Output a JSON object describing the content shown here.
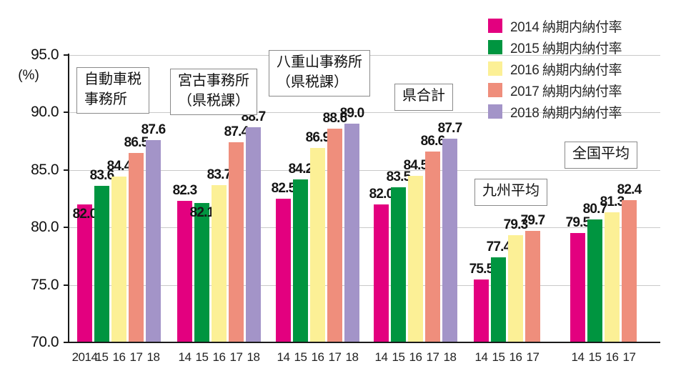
{
  "chart_data": {
    "type": "bar",
    "title": "",
    "y_axis": {
      "unit": "(%)",
      "min": 70.0,
      "max": 95.0,
      "ticks": [
        "95.0",
        "90.0",
        "85.0",
        "80.0",
        "75.0",
        "70.0"
      ]
    },
    "grid": true,
    "legend_position": "top-right",
    "legend": [
      {
        "label": "2014 納期内納付率",
        "color": "#e3007f"
      },
      {
        "label": "2015 納期内納付率",
        "color": "#009540"
      },
      {
        "label": "2016 納期内納付率",
        "color": "#fcf096"
      },
      {
        "label": "2017 納期内納付率",
        "color": "#ef8e7c"
      },
      {
        "label": "2018 納期内納付率",
        "color": "#a394c8"
      }
    ],
    "series_colors": [
      "#e3007f",
      "#009540",
      "#fcf096",
      "#ef8e7c",
      "#a394c8"
    ],
    "groups": [
      {
        "name": "自動車税\n事務所",
        "years": [
          "2014",
          "15",
          "16",
          "17",
          "18"
        ],
        "values": [
          82.0,
          83.6,
          84.4,
          86.5,
          87.6
        ]
      },
      {
        "name": "宮古事務所\n（県税課）",
        "years": [
          "14",
          "15",
          "16",
          "17",
          "18"
        ],
        "values": [
          82.3,
          82.1,
          83.7,
          87.4,
          88.7
        ]
      },
      {
        "name": "八重山事務所\n（県税課）",
        "years": [
          "14",
          "15",
          "16",
          "17",
          "18"
        ],
        "values": [
          82.5,
          84.2,
          86.9,
          88.6,
          89.0
        ]
      },
      {
        "name": "県合計",
        "years": [
          "14",
          "15",
          "16",
          "17",
          "18"
        ],
        "values": [
          82.0,
          83.5,
          84.5,
          86.6,
          87.7
        ]
      },
      {
        "name": "九州平均",
        "years": [
          "14",
          "15",
          "16",
          "17"
        ],
        "values": [
          75.5,
          77.4,
          79.3,
          79.7
        ]
      },
      {
        "name": "全国平均",
        "years": [
          "14",
          "15",
          "16",
          "17"
        ],
        "values": [
          79.5,
          80.7,
          81.3,
          82.4
        ]
      }
    ]
  }
}
